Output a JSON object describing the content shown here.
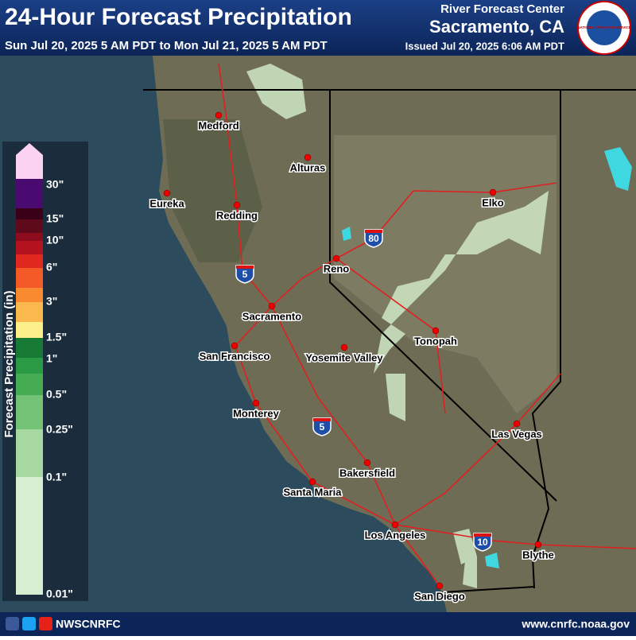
{
  "header": {
    "title": "24-Hour Forecast Precipitation",
    "subtitle": "Sun Jul 20, 2025 5 AM PDT to Mon Jul 21, 2025 5 AM PDT",
    "center": "River Forecast Center",
    "location": "Sacramento, CA",
    "issued": "Issued Jul 20, 2025 6:06 AM PDT",
    "logo": "NATIONAL WEATHER SERVICE"
  },
  "legend": {
    "title": "Forecast Precipitation (in)",
    "labels": [
      "30\"",
      "15\"",
      "10\"",
      "6\"",
      "3\"",
      "1.5\"",
      "1\"",
      "0.5\"",
      "0.25\"",
      "0.1\"",
      "0.01\""
    ],
    "colors": [
      "#fbd2f2",
      "#4a0b70",
      "#3a0018",
      "#5e0a1a",
      "#8c0c1e",
      "#b4121e",
      "#e0281e",
      "#f45a28",
      "#f98a30",
      "#fbb84c",
      "#fdf08a",
      "#167a34",
      "#2a9a44",
      "#46ac54",
      "#74c276",
      "#a8d8a2",
      "#d8eed0"
    ]
  },
  "cities": [
    "Medford",
    "Eureka",
    "Redding",
    "Alturas",
    "Reno",
    "Elko",
    "Sacramento",
    "San Francisco",
    "Yosemite Valley",
    "Tonopah",
    "Monterey",
    "Las Vegas",
    "Bakersfield",
    "Santa Maria",
    "Los Angeles",
    "Blythe",
    "San Diego"
  ],
  "interstates": [
    "80",
    "5",
    "5",
    "10"
  ],
  "footer": {
    "social": "NWSCNRFC",
    "url": "www.cnrfc.noaa.gov"
  }
}
